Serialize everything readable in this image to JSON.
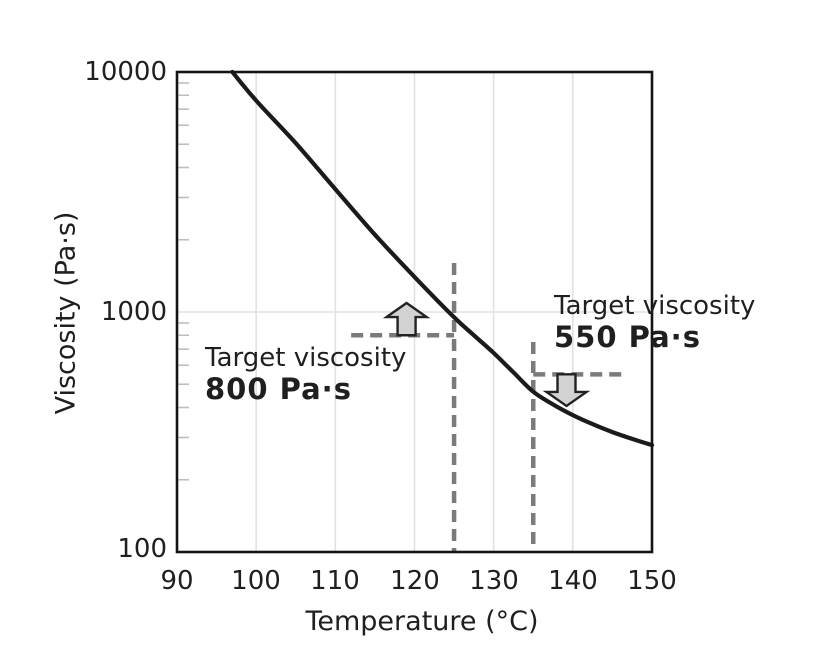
{
  "chart_data": {
    "type": "line",
    "title": "",
    "xlabel": "Temperature (°C)",
    "ylabel": "Viscosity (Pa·s)",
    "x_axis": {
      "min": 90,
      "max": 150,
      "scale": "linear",
      "ticks": [
        90,
        100,
        110,
        120,
        130,
        140,
        150
      ]
    },
    "y_axis": {
      "min": 100,
      "max": 10000,
      "scale": "log",
      "ticks": [
        100,
        1000,
        10000
      ],
      "minor_ticks": [
        200,
        300,
        400,
        500,
        600,
        700,
        800,
        900,
        2000,
        3000,
        4000,
        5000,
        6000,
        7000,
        8000,
        9000
      ]
    },
    "grid": "major",
    "series": [
      {
        "name": "viscosity-vs-temperature-curve",
        "points": [
          [
            97,
            10000
          ],
          [
            100,
            7600
          ],
          [
            105,
            5050
          ],
          [
            110,
            3250
          ],
          [
            115,
            2100
          ],
          [
            120,
            1400
          ],
          [
            125,
            950
          ],
          [
            127.5,
            800
          ],
          [
            130,
            675
          ],
          [
            132.5,
            560
          ],
          [
            135,
            465
          ],
          [
            137.5,
            412
          ],
          [
            140,
            372
          ],
          [
            142.5,
            341
          ],
          [
            145,
            316
          ],
          [
            147.5,
            296
          ],
          [
            150,
            279
          ]
        ]
      }
    ],
    "targets": [
      {
        "title": "Target viscosity",
        "value_label": "800 Pa·s",
        "temp": 125,
        "viscosity": 800,
        "h_line_temp_range": [
          112,
          125
        ],
        "v_line_visc_range": [
          100,
          1600
        ],
        "arrow": {
          "direction": "up",
          "temp": 119,
          "from_viscosity": 800,
          "to_viscosity": 1090
        }
      },
      {
        "title": "Target viscosity",
        "value_label": "550 Pa·s",
        "temp": 135,
        "viscosity": 550,
        "h_line_temp_range": [
          135,
          146.5
        ],
        "v_line_visc_range": [
          100,
          750
        ],
        "arrow": {
          "direction": "down",
          "temp": 139.2,
          "from_viscosity": 550,
          "to_viscosity": 406
        }
      }
    ],
    "colors": {
      "curve": "#1b1b1b",
      "target_dash": "#7b7b7b",
      "arrow_fill": "#d2d2d2",
      "arrow_stroke": "#222222",
      "grid": "#e2e2e2",
      "minor_tick": "#bdbdbd",
      "axis": "#141414",
      "text": "#1f1f1f",
      "background": "#ffffff"
    }
  }
}
